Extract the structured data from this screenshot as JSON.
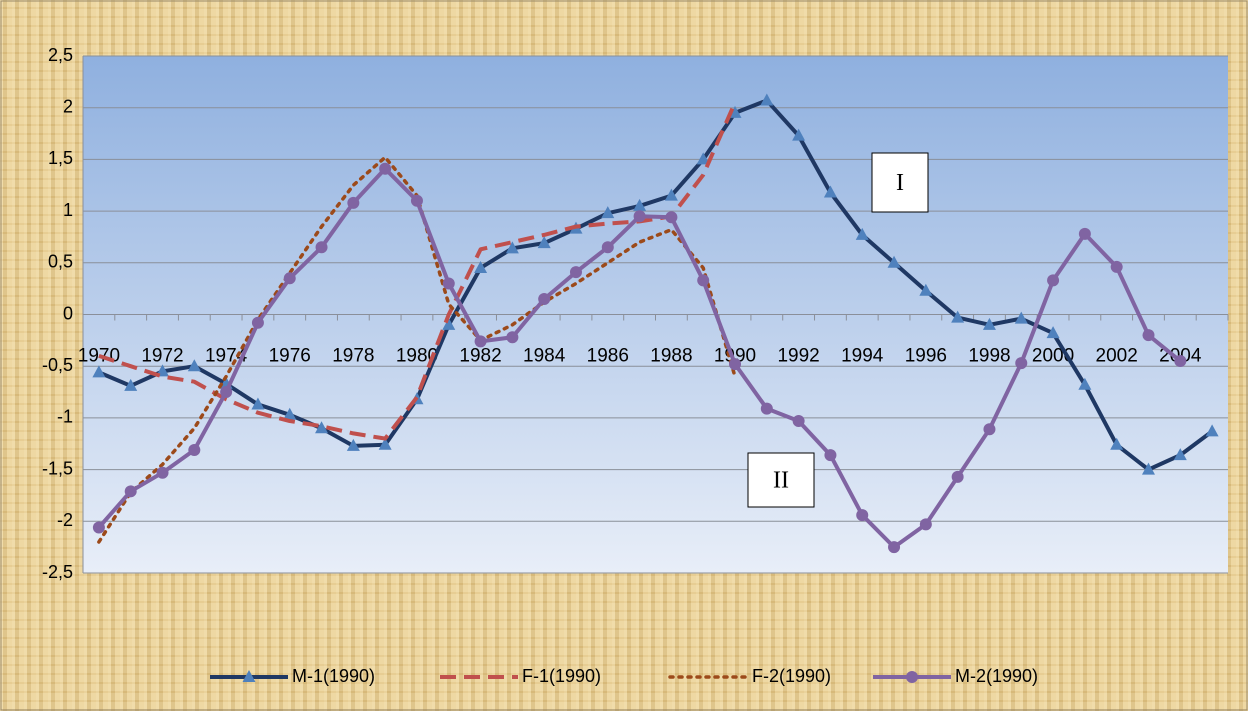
{
  "chart_data": {
    "type": "line",
    "categories": [
      "1970",
      null,
      "1972",
      null,
      "1974",
      null,
      "1976",
      null,
      "1978",
      null,
      "1980",
      null,
      "1982",
      null,
      "1984",
      null,
      "1986",
      null,
      "1988",
      null,
      "1990",
      null,
      "1992",
      null,
      "1994",
      null,
      "1996",
      null,
      "1998",
      null,
      "2000",
      null,
      "2002",
      null,
      "2004",
      null
    ],
    "series": [
      {
        "name": "M-1(1990)",
        "color": "#1f3864",
        "marker": "triangle",
        "marker_color": "#4f81bd",
        "dash": "solid",
        "values": [
          -0.56,
          -0.69,
          -0.55,
          -0.5,
          -0.67,
          -0.87,
          -0.97,
          -1.1,
          -1.27,
          -1.26,
          -0.82,
          -0.1,
          0.45,
          0.64,
          0.69,
          0.83,
          0.98,
          1.05,
          1.15,
          1.5,
          1.95,
          2.07,
          1.73,
          1.18,
          0.77,
          0.5,
          0.23,
          -0.03,
          -0.1,
          -0.04,
          -0.18,
          -0.68,
          -1.26,
          -1.5,
          -1.36,
          -1.13
        ]
      },
      {
        "name": "F-1(1990)",
        "color": "#c0504d",
        "marker": "none",
        "dash": "dashed",
        "values": [
          -0.4,
          -0.5,
          -0.6,
          -0.65,
          -0.82,
          -0.95,
          -1.03,
          -1.08,
          -1.15,
          -1.2,
          -0.8,
          0.0,
          0.63,
          0.7,
          0.77,
          0.85,
          0.88,
          0.9,
          0.95,
          1.35,
          2.05,
          null,
          null,
          null,
          null,
          null,
          null,
          null,
          null,
          null,
          null,
          null,
          null,
          null,
          null,
          null
        ]
      },
      {
        "name": "F-2(1990)",
        "color": "#9c4a1a",
        "marker": "none",
        "dash": "dotted",
        "values": [
          -2.2,
          -1.72,
          -1.45,
          -1.1,
          -0.6,
          -0.05,
          0.4,
          0.85,
          1.25,
          1.52,
          1.15,
          0.1,
          -0.25,
          -0.1,
          0.12,
          0.3,
          0.5,
          0.7,
          0.82,
          0.45,
          -0.6,
          null,
          null,
          null,
          null,
          null,
          null,
          null,
          null,
          null,
          null,
          null,
          null,
          null,
          null,
          null
        ]
      },
      {
        "name": "M-2(1990)",
        "color": "#8064a2",
        "marker": "circle",
        "marker_color": "#8064a2",
        "dash": "solid",
        "values": [
          -2.06,
          -1.71,
          -1.53,
          -1.31,
          -0.75,
          -0.08,
          0.35,
          0.65,
          1.08,
          1.41,
          1.1,
          0.3,
          -0.26,
          -0.22,
          0.15,
          0.41,
          0.65,
          0.95,
          0.94,
          0.33,
          -0.48,
          -0.91,
          -1.03,
          -1.36,
          -1.94,
          -2.25,
          -2.03,
          -1.57,
          -1.11,
          -0.47,
          0.33,
          0.78,
          0.46,
          -0.2,
          -0.45,
          null
        ]
      }
    ],
    "ylim": [
      -2.5,
      2.5
    ],
    "yticks": [
      {
        "value": -2.5,
        "label": "-2,5"
      },
      -2,
      {
        "value": -1.5,
        "label": "-1,5"
      },
      -1,
      {
        "value": -0.5,
        "label": "-0,5"
      },
      0,
      {
        "value": 0.5,
        "label": "0,5"
      },
      1,
      {
        "value": 1.5,
        "label": "1,5"
      },
      2,
      {
        "value": 2.5,
        "label": "2,5"
      }
    ],
    "grid": true,
    "legend": "bottom",
    "annotations": [
      "I",
      "II"
    ]
  }
}
